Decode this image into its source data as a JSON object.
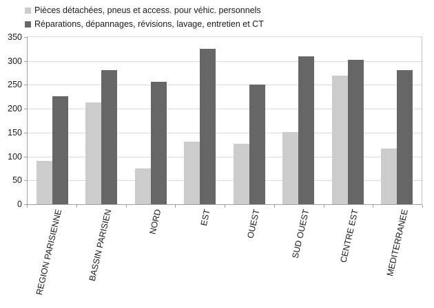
{
  "chart_data": {
    "type": "bar",
    "title": "",
    "xlabel": "",
    "ylabel": "",
    "categories": [
      "REGION PARISIENNE",
      "BASSIN PARISIEN",
      "NORD",
      "EST",
      "OUEST",
      "SUD OUEST",
      "CENTRE EST",
      "MEDITERRANEE"
    ],
    "series": [
      {
        "name": "Pièces détachées, pneus et access. pour véhic. personnels",
        "color": "#cccccc",
        "values": [
          91,
          213,
          75,
          131,
          127,
          151,
          270,
          117
        ]
      },
      {
        "name": "Réparations, dépannages, révisions, lavage, entretien et CT",
        "color": "#666666",
        "values": [
          226,
          281,
          257,
          325,
          250,
          310,
          303,
          281
        ]
      }
    ],
    "ylim": [
      0,
      350
    ],
    "yticks": [
      0,
      50,
      100,
      150,
      200,
      250,
      300,
      350
    ],
    "grid": "horizontal",
    "legend_position": "top-left",
    "colors": {
      "gridline": "#d9d9d9",
      "axis": "#9e9e9e",
      "text": "#1a1a1a",
      "background": "#ffffff"
    }
  }
}
